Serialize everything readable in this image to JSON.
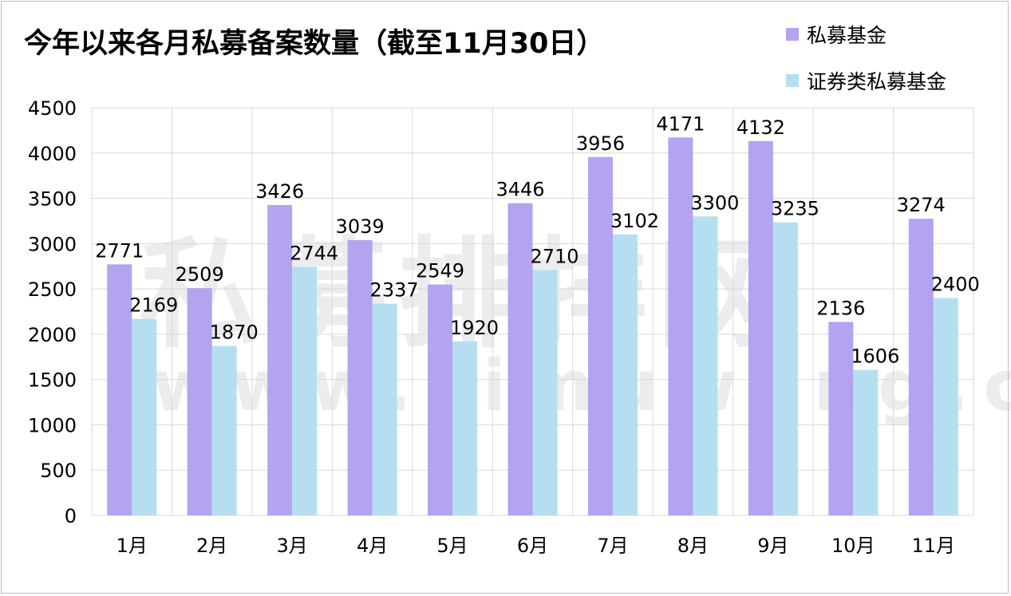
{
  "title": "今年以来各月私募备案数量（截至11月30日）",
  "legend": [
    {
      "label": "私募基金",
      "color": "#b3a3f0"
    },
    {
      "label": "证券类私募基金",
      "color": "#b5dff0"
    }
  ],
  "watermark": {
    "text": "私募排排网",
    "url": "www.simuwang.com"
  },
  "chart_data": {
    "type": "bar",
    "title": "今年以来各月私募备案数量（截至11月30日）",
    "categories": [
      "1月",
      "2月",
      "3月",
      "4月",
      "5月",
      "6月",
      "7月",
      "8月",
      "9月",
      "10月",
      "11月"
    ],
    "series": [
      {
        "name": "私募基金",
        "color": "#b3a3f0",
        "values": [
          2771,
          2509,
          3426,
          3039,
          2549,
          3446,
          3956,
          4171,
          4132,
          2136,
          3274
        ]
      },
      {
        "name": "证券类私募基金",
        "color": "#b5dff0",
        "values": [
          2169,
          1870,
          2744,
          2337,
          1920,
          2710,
          3102,
          3300,
          3235,
          1606,
          2400
        ]
      }
    ],
    "ylim": [
      0,
      4500
    ],
    "yticks": [
      0,
      500,
      1000,
      1500,
      2000,
      2500,
      3000,
      3500,
      4000,
      4500
    ],
    "grid": true,
    "legend_position": "top-right",
    "xlabel": "",
    "ylabel": ""
  }
}
